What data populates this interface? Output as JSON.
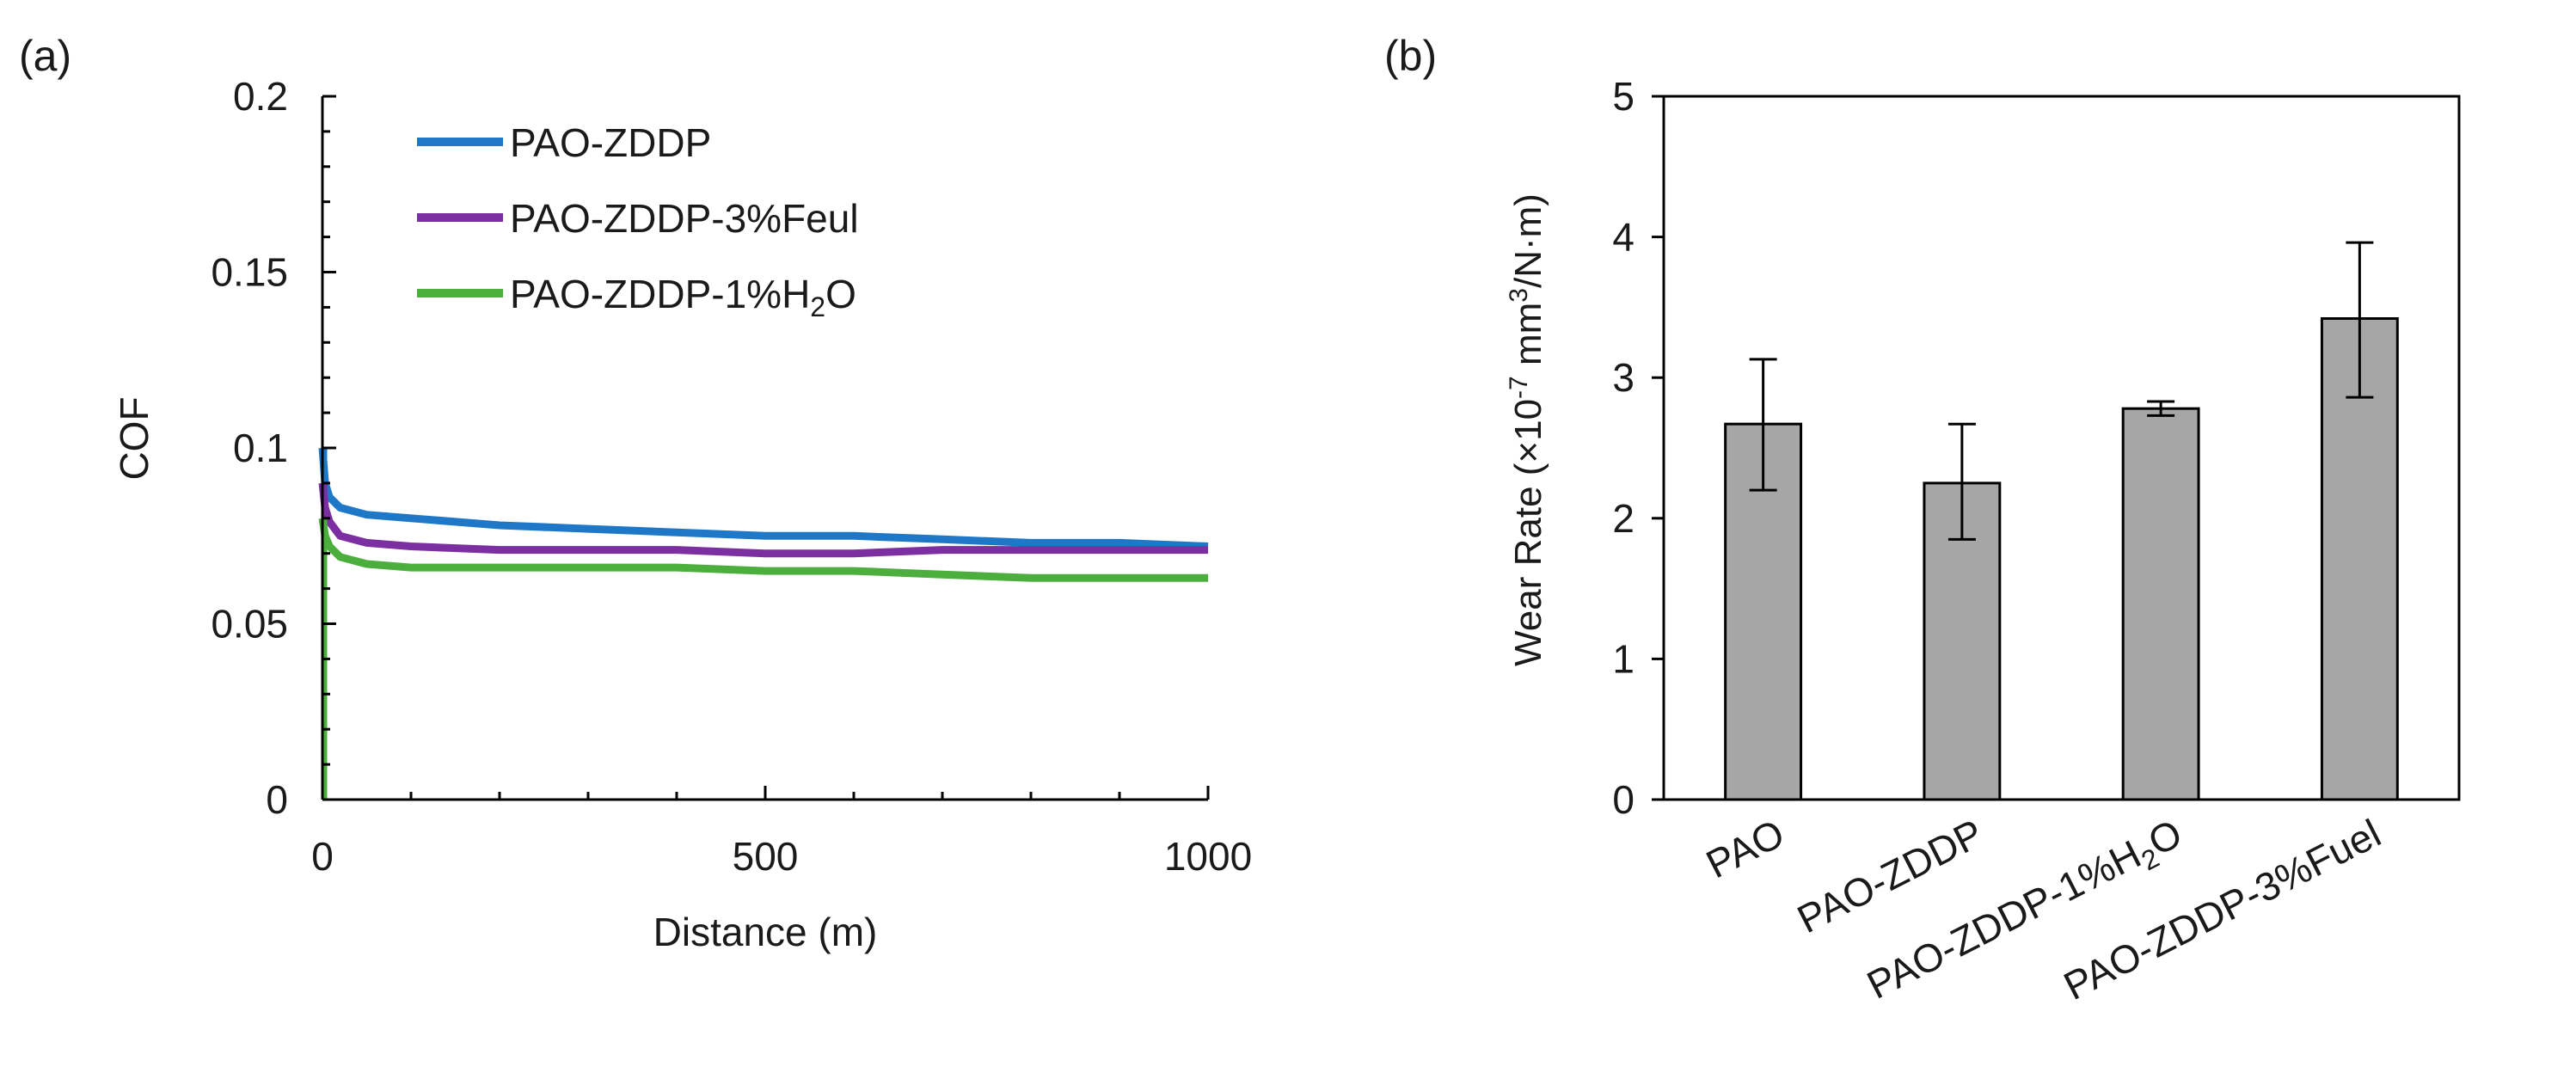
{
  "chart_data": [
    {
      "panel_label": "(a)",
      "type": "line",
      "title": "",
      "xlabel": "Distance (m)",
      "ylabel": "COF",
      "xlim": [
        0,
        1000
      ],
      "ylim": [
        0,
        0.2
      ],
      "x_ticks": [
        0,
        500,
        1000
      ],
      "y_ticks": [
        0,
        0.05,
        0.1,
        0.15,
        0.2
      ],
      "x_tick_labels": [
        "0",
        "500",
        "1000"
      ],
      "y_tick_labels": [
        "0",
        "0.05",
        "0.1",
        "0.15",
        "0.2"
      ],
      "grid": false,
      "legend_position": "top-right",
      "series": [
        {
          "name": "PAO-ZDDP",
          "legend_main": "PAO-ZDDP",
          "legend_sub": "",
          "legend_tail": "",
          "color": "#1f77c8",
          "x": [
            0,
            3,
            8,
            20,
            50,
            100,
            200,
            300,
            400,
            500,
            600,
            700,
            800,
            900,
            1000
          ],
          "y": [
            0.1,
            0.09,
            0.086,
            0.083,
            0.081,
            0.08,
            0.078,
            0.077,
            0.076,
            0.075,
            0.075,
            0.074,
            0.073,
            0.073,
            0.072
          ]
        },
        {
          "name": "PAO-ZDDP-3%Feul",
          "legend_main": "PAO-ZDDP-3%Feul",
          "legend_sub": "",
          "legend_tail": "",
          "color": "#7b2fa0",
          "x": [
            0,
            3,
            8,
            20,
            50,
            100,
            200,
            300,
            400,
            500,
            600,
            700,
            800,
            900,
            1000
          ],
          "y": [
            0.09,
            0.083,
            0.079,
            0.075,
            0.073,
            0.072,
            0.071,
            0.071,
            0.071,
            0.07,
            0.07,
            0.071,
            0.071,
            0.071,
            0.071
          ]
        },
        {
          "name": "PAO-ZDDP-1%H2O",
          "legend_main": "PAO-ZDDP-1%H",
          "legend_sub": "2",
          "legend_tail": "O",
          "color": "#4cae3c",
          "x": [
            0,
            3,
            8,
            20,
            50,
            100,
            200,
            300,
            400,
            500,
            600,
            700,
            800,
            900,
            1000
          ],
          "y": [
            0.08,
            0.075,
            0.072,
            0.069,
            0.067,
            0.066,
            0.066,
            0.066,
            0.066,
            0.065,
            0.065,
            0.064,
            0.063,
            0.063,
            0.063
          ]
        }
      ]
    },
    {
      "panel_label": "(b)",
      "type": "bar",
      "title": "",
      "xlabel": "",
      "ylabel": "Wear Rate (×10",
      "ylabel_sup1": "-7",
      "ylabel_mid": " mm",
      "ylabel_sup2": "3",
      "ylabel_tail": "/N·m)",
      "ylim": [
        0,
        5
      ],
      "y_ticks": [
        0,
        1,
        2,
        3,
        4,
        5
      ],
      "y_tick_labels": [
        "0",
        "1",
        "2",
        "3",
        "4",
        "5"
      ],
      "grid": false,
      "bar_color": "#a6a6a6",
      "categories": [
        "PAO",
        "PAO-ZDDP",
        "PAO-ZDDP-1%H2O",
        "PAO-ZDDP-3%Fuel"
      ],
      "category_labels": [
        {
          "main": "PAO",
          "sub": "",
          "tail": ""
        },
        {
          "main": "PAO-ZDDP",
          "sub": "",
          "tail": ""
        },
        {
          "main": "PAO-ZDDP-1%H",
          "sub": "2",
          "tail": "O"
        },
        {
          "main": "PAO-ZDDP-3%Fuel",
          "sub": "",
          "tail": ""
        }
      ],
      "values": [
        2.67,
        2.25,
        2.78,
        3.42
      ],
      "error_low": [
        2.2,
        1.85,
        2.73,
        2.86
      ],
      "error_high": [
        3.13,
        2.67,
        2.83,
        3.96
      ]
    }
  ]
}
